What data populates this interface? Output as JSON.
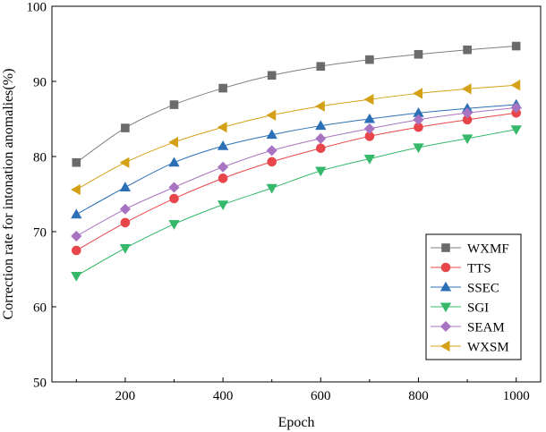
{
  "chart_data": {
    "type": "line",
    "xlabel": "Epoch",
    "ylabel": "Correction rate for intonation anomalies(%)",
    "x": [
      100,
      200,
      300,
      400,
      500,
      600,
      700,
      800,
      900,
      1000
    ],
    "xticks": [
      200,
      400,
      600,
      800,
      1000
    ],
    "xlim": [
      50,
      1050
    ],
    "ylim": [
      50,
      100
    ],
    "yticks": [
      50,
      60,
      70,
      80,
      90,
      100
    ],
    "grid": false,
    "legend_position": "bottom-right",
    "series": [
      {
        "name": "WXMF",
        "marker": "square",
        "color": "#7f7f7f",
        "markerColor": "#6b6b6b",
        "values": [
          79.2,
          83.8,
          86.9,
          89.1,
          90.8,
          92.0,
          92.9,
          93.6,
          94.2,
          94.7
        ]
      },
      {
        "name": "TTS",
        "marker": "circle",
        "color": "#e8464a",
        "markerColor": "#e8464a",
        "values": [
          67.5,
          71.2,
          74.4,
          77.1,
          79.3,
          81.1,
          82.7,
          83.9,
          84.9,
          85.8
        ]
      },
      {
        "name": "SSEC",
        "marker": "triangle-up",
        "color": "#2b6fb6",
        "markerColor": "#2b6fb6",
        "values": [
          72.3,
          75.9,
          79.2,
          81.4,
          82.9,
          84.1,
          85.0,
          85.8,
          86.4,
          86.9
        ]
      },
      {
        "name": "SGI",
        "marker": "triangle-down",
        "color": "#35b86a",
        "markerColor": "#35b86a",
        "values": [
          64.1,
          67.8,
          71.0,
          73.6,
          75.8,
          78.1,
          79.7,
          81.2,
          82.4,
          83.6
        ]
      },
      {
        "name": "SEAM",
        "marker": "diamond",
        "color": "#a874c2",
        "markerColor": "#a874c2",
        "values": [
          69.4,
          73.0,
          75.9,
          78.6,
          80.8,
          82.4,
          83.7,
          84.9,
          85.8,
          86.5
        ]
      },
      {
        "name": "WXSM",
        "marker": "triangle-left",
        "color": "#d4a017",
        "markerColor": "#d4a017",
        "values": [
          75.6,
          79.2,
          81.9,
          83.9,
          85.5,
          86.7,
          87.6,
          88.4,
          89.0,
          89.5
        ]
      }
    ]
  }
}
